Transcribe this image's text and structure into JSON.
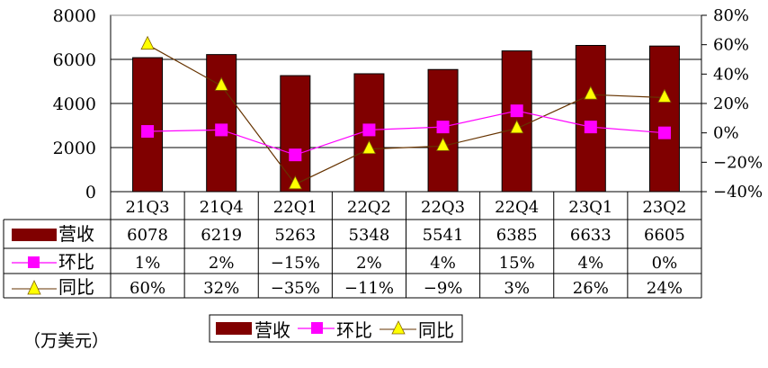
{
  "chart_data": {
    "type": "bar",
    "title": "",
    "unit_note": "（万美元）",
    "categories": [
      "21Q3",
      "21Q4",
      "22Q1",
      "22Q2",
      "22Q3",
      "22Q4",
      "23Q1",
      "23Q2"
    ],
    "series": [
      {
        "name": "营收",
        "type": "bar",
        "axis": "left",
        "color": "#800000",
        "values": [
          6078,
          6219,
          5263,
          5348,
          5541,
          6385,
          6633,
          6605
        ]
      },
      {
        "name": "环比",
        "type": "line",
        "axis": "right",
        "color": "#ff00ff",
        "marker": "square",
        "values": [
          1,
          2,
          -15,
          2,
          4,
          15,
          4,
          0
        ],
        "labels": [
          "1%",
          "2%",
          "−15%",
          "2%",
          "4%",
          "15%",
          "4%",
          "0%"
        ]
      },
      {
        "name": "同比",
        "type": "line",
        "axis": "right",
        "color": "#663300",
        "marker": "triangle",
        "marker_color": "#ffff00",
        "values": [
          60,
          32,
          -35,
          -11,
          -9,
          3,
          26,
          24
        ],
        "labels": [
          "60%",
          "32%",
          "−35%",
          "−11%",
          "−9%",
          "3%",
          "26%",
          "24%"
        ]
      }
    ],
    "left_axis": {
      "ylim": [
        0,
        8000
      ],
      "ticks": [
        "0",
        "2000",
        "4000",
        "6000",
        "8000"
      ]
    },
    "right_axis": {
      "ylim": [
        -40,
        80
      ],
      "ticks": [
        "−40%",
        "−20%",
        "0%",
        "20%",
        "40%",
        "60%",
        "80%"
      ]
    },
    "grid": true,
    "legend": {
      "position": "bottom",
      "entries": [
        "营收",
        "环比",
        "同比"
      ]
    },
    "data_table": true
  }
}
